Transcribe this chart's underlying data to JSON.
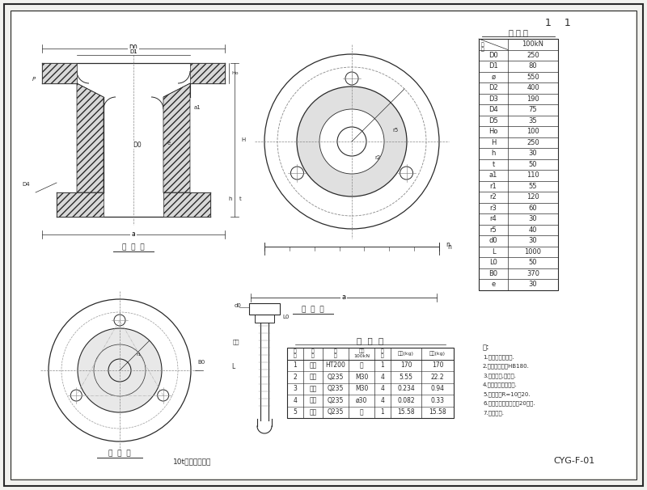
{
  "bg_color": "#f2f2ee",
  "line_color": "#2a2a2a",
  "title_bottom": "10t系靠柱设计图",
  "title_code": "CYG-F-01",
  "page_num": "1    1",
  "design_table_title": "尺 寸 表",
  "design_table_rows": [
    [
      "D0",
      "250"
    ],
    [
      "D1",
      "80"
    ],
    [
      "ø",
      "550"
    ],
    [
      "D2",
      "400"
    ],
    [
      "D3",
      "190"
    ],
    [
      "D4",
      "75"
    ],
    [
      "D5",
      "35"
    ],
    [
      "Ho",
      "100"
    ],
    [
      "H",
      "250"
    ],
    [
      "h",
      "30"
    ],
    [
      "t",
      "50"
    ],
    [
      "a1",
      "110"
    ],
    [
      "r1",
      "55"
    ],
    [
      "r2",
      "120"
    ],
    [
      "r3",
      "60"
    ],
    [
      "r4",
      "30"
    ],
    [
      "r5",
      "40"
    ],
    [
      "d0",
      "30"
    ],
    [
      "L",
      "1000"
    ],
    [
      "L0",
      "50"
    ],
    [
      "B0",
      "370"
    ],
    [
      "e",
      "30"
    ]
  ],
  "material_table_title": "材  料  表",
  "material_table_headers": [
    "件\n号",
    "名\n称",
    "规\n格",
    "荷载\n100kN",
    "数\n量",
    "单重(kg)",
    "总重(kg)"
  ],
  "material_table_rows": [
    [
      "1",
      "锁板",
      "HT200",
      "厂",
      "1",
      "170",
      "170"
    ],
    [
      "2",
      "锁栓",
      "Q235",
      "M30",
      "4",
      "5.55",
      "22.2"
    ],
    [
      "3",
      "锁母",
      "Q235",
      "M30",
      "4",
      "0.234",
      "0.94"
    ],
    [
      "4",
      "垫圈",
      "Q235",
      "ø30",
      "4",
      "0.082",
      "0.33"
    ],
    [
      "5",
      "荷母",
      "Q235",
      "厂",
      "1",
      "15.58",
      "15.58"
    ]
  ],
  "notes": [
    "注:",
    "1.按标准精度制造.",
    "2.材料标准执行HB180.",
    "3.精铸铸件,校核图.",
    "4.不允许使用替代材.",
    "5.允许圆角R=10～20.",
    "6.铸件附壁厚不得小于20毫米.",
    "7.其余按图."
  ],
  "front_view_label": "正  面  图",
  "bottom_view_label": "系  靠  图",
  "anchor_label": "安  装  图"
}
